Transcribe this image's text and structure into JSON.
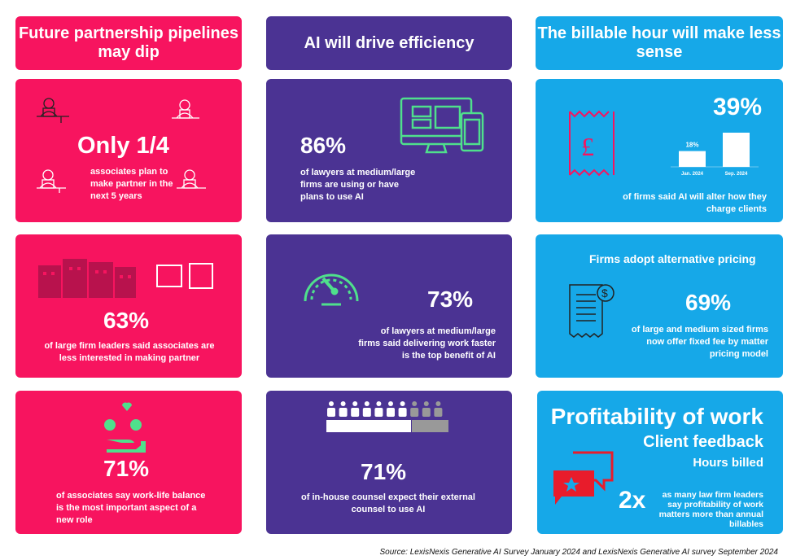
{
  "colors": {
    "pink": "#f7145f",
    "purple": "#4b3393",
    "blue": "#16a8e8",
    "green": "#4fe08c"
  },
  "columns": [
    {
      "header": "Future partnership pipelines may dip",
      "cards": [
        {
          "stat": "Only 1/4",
          "text": "associates plan to make partner in the next 5 years",
          "icon": "person-at-laptop-icon"
        },
        {
          "stat": "63%",
          "text": "of large firm leaders said associates are less interested in making partner",
          "icon": "office-buildings-icon"
        },
        {
          "stat": "71%",
          "text": "of associates say work-life balance is the most important aspect of a new role",
          "icon": "hand-money-time-icon"
        }
      ]
    },
    {
      "header": "AI will drive efficiency",
      "cards": [
        {
          "stat": "86%",
          "text": "of lawyers at medium/large firms are using or have plans to use AI",
          "icon": "devices-icon"
        },
        {
          "stat": "73%",
          "text": "of lawyers at medium/large firms said delivering work faster is the top benefit of AI",
          "icon": "speedometer-icon"
        },
        {
          "stat": "71%",
          "text": "of  in-house counsel expect their external counsel to use AI",
          "icon": "people-icon",
          "people_total": 10,
          "people_highlighted": 7
        }
      ]
    },
    {
      "header": "The billable hour will make less sense",
      "cards": [
        {
          "stat": "39%",
          "text": "of firms said AI will alter how they charge clients",
          "icon": "pound-receipt-icon",
          "chart_data": {
            "type": "bar",
            "categories": [
              "Jan. 2024",
              "Sep. 2024"
            ],
            "values": [
              18,
              39
            ],
            "labels": [
              "18%",
              ""
            ]
          }
        },
        {
          "title": "Firms adopt alternative pricing",
          "stat": "69%",
          "text": "of large and medium sized firms now offer fixed fee by matter pricing model",
          "icon": "invoice-dollar-icon"
        },
        {
          "line1": "Profitability of work",
          "line2": "Client feedback",
          "line3": "Hours billed",
          "stat": "2x",
          "text": "as many law firm leaders say profitability of work matters more than annual billables",
          "icon": "chat-bubbles-star-icon"
        }
      ]
    }
  ],
  "source": "Source: LexisNexis Generative AI Survey January 2024 and LexisNexis Generative AI survey September 2024"
}
